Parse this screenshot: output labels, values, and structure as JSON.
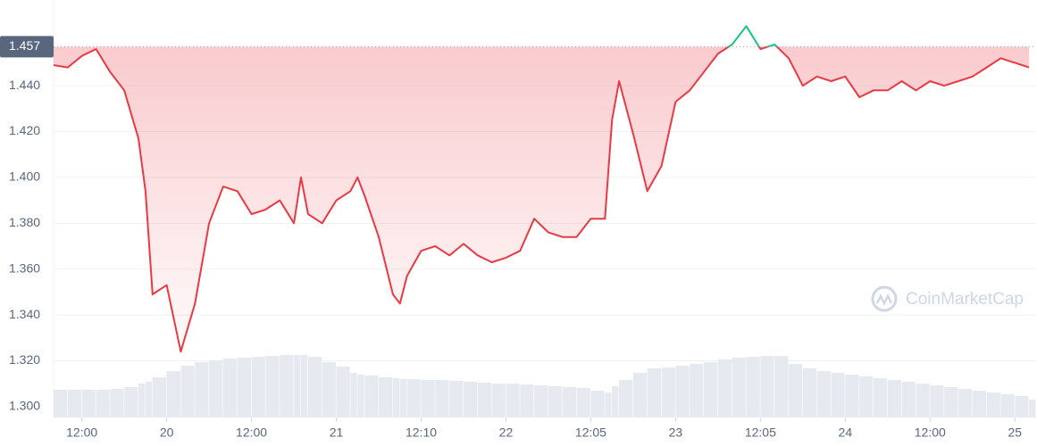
{
  "chart_data": {
    "type": "line",
    "watermark": "CoinMarketCap",
    "xlim": [
      0,
      139
    ],
    "ylim": [
      1.2953,
      1.4774
    ],
    "xticks": [
      {
        "value": 4,
        "label": "12:00"
      },
      {
        "value": 16,
        "label": "20"
      },
      {
        "value": 28,
        "label": "12:00"
      },
      {
        "value": 40,
        "label": "21"
      },
      {
        "value": 52,
        "label": "12:10"
      },
      {
        "value": 64,
        "label": "22"
      },
      {
        "value": 76,
        "label": "12:05"
      },
      {
        "value": 88,
        "label": "23"
      },
      {
        "value": 100,
        "label": "12:05"
      },
      {
        "value": 112,
        "label": "24"
      },
      {
        "value": 124,
        "label": "12:00"
      },
      {
        "value": 136,
        "label": "25"
      }
    ],
    "yticks": [
      {
        "value": 1.3,
        "label": "1.300"
      },
      {
        "value": 1.32,
        "label": "1.320"
      },
      {
        "value": 1.34,
        "label": "1.340"
      },
      {
        "value": 1.36,
        "label": "1.360"
      },
      {
        "value": 1.38,
        "label": "1.380"
      },
      {
        "value": 1.4,
        "label": "1.400"
      },
      {
        "value": 1.42,
        "label": "1.420"
      },
      {
        "value": 1.44,
        "label": "1.440"
      }
    ],
    "grid": true,
    "ref_line": {
      "value": 1.457,
      "label": "1.457"
    },
    "color_below": "#ea3943",
    "color_above": "#16c784",
    "x": [
      0,
      2,
      4,
      6,
      8,
      10,
      12,
      13,
      14,
      16,
      18,
      20,
      22,
      24,
      26,
      28,
      30,
      32,
      34,
      35,
      36,
      38,
      40,
      42,
      43,
      44,
      46,
      48,
      49,
      50,
      52,
      54,
      56,
      58,
      60,
      62,
      64,
      66,
      68,
      70,
      72,
      74,
      76,
      78,
      79,
      80,
      82,
      84,
      86,
      88,
      90,
      92,
      94,
      96,
      98,
      100,
      102,
      104,
      106,
      108,
      110,
      112,
      114,
      116,
      118,
      120,
      122,
      124,
      126,
      128,
      130,
      132,
      134,
      136,
      138
    ],
    "values": [
      1.449,
      1.448,
      1.453,
      1.456,
      1.446,
      1.438,
      1.417,
      1.394,
      1.349,
      1.353,
      1.324,
      1.345,
      1.38,
      1.396,
      1.394,
      1.384,
      1.386,
      1.39,
      1.38,
      1.4,
      1.384,
      1.38,
      1.39,
      1.394,
      1.4,
      1.392,
      1.374,
      1.349,
      1.345,
      1.357,
      1.368,
      1.37,
      1.366,
      1.371,
      1.366,
      1.363,
      1.365,
      1.368,
      1.382,
      1.376,
      1.374,
      1.374,
      1.382,
      1.382,
      1.425,
      1.442,
      1.419,
      1.394,
      1.405,
      1.433,
      1.438,
      1.446,
      1.454,
      1.458,
      1.466,
      1.456,
      1.458,
      1.452,
      1.44,
      1.444,
      1.442,
      1.444,
      1.435,
      1.438,
      1.438,
      1.442,
      1.438,
      1.442,
      1.44,
      1.442,
      1.444,
      1.448,
      1.452,
      1.45,
      1.448
    ],
    "volume": [
      31,
      31,
      31,
      31,
      32,
      34,
      38,
      40,
      45,
      52,
      58,
      62,
      64,
      66,
      67,
      68,
      69,
      70,
      70,
      70,
      68,
      62,
      57,
      50,
      48,
      47,
      45,
      44,
      43,
      43,
      42,
      42,
      41,
      40,
      39,
      38,
      38,
      37,
      36,
      35,
      34,
      33,
      30,
      28,
      35,
      42,
      50,
      55,
      56,
      58,
      60,
      62,
      65,
      67,
      68,
      69,
      69,
      60,
      55,
      52,
      50,
      48,
      46,
      44,
      42,
      40,
      38,
      36,
      34,
      32,
      30,
      28,
      26,
      24,
      20
    ]
  }
}
